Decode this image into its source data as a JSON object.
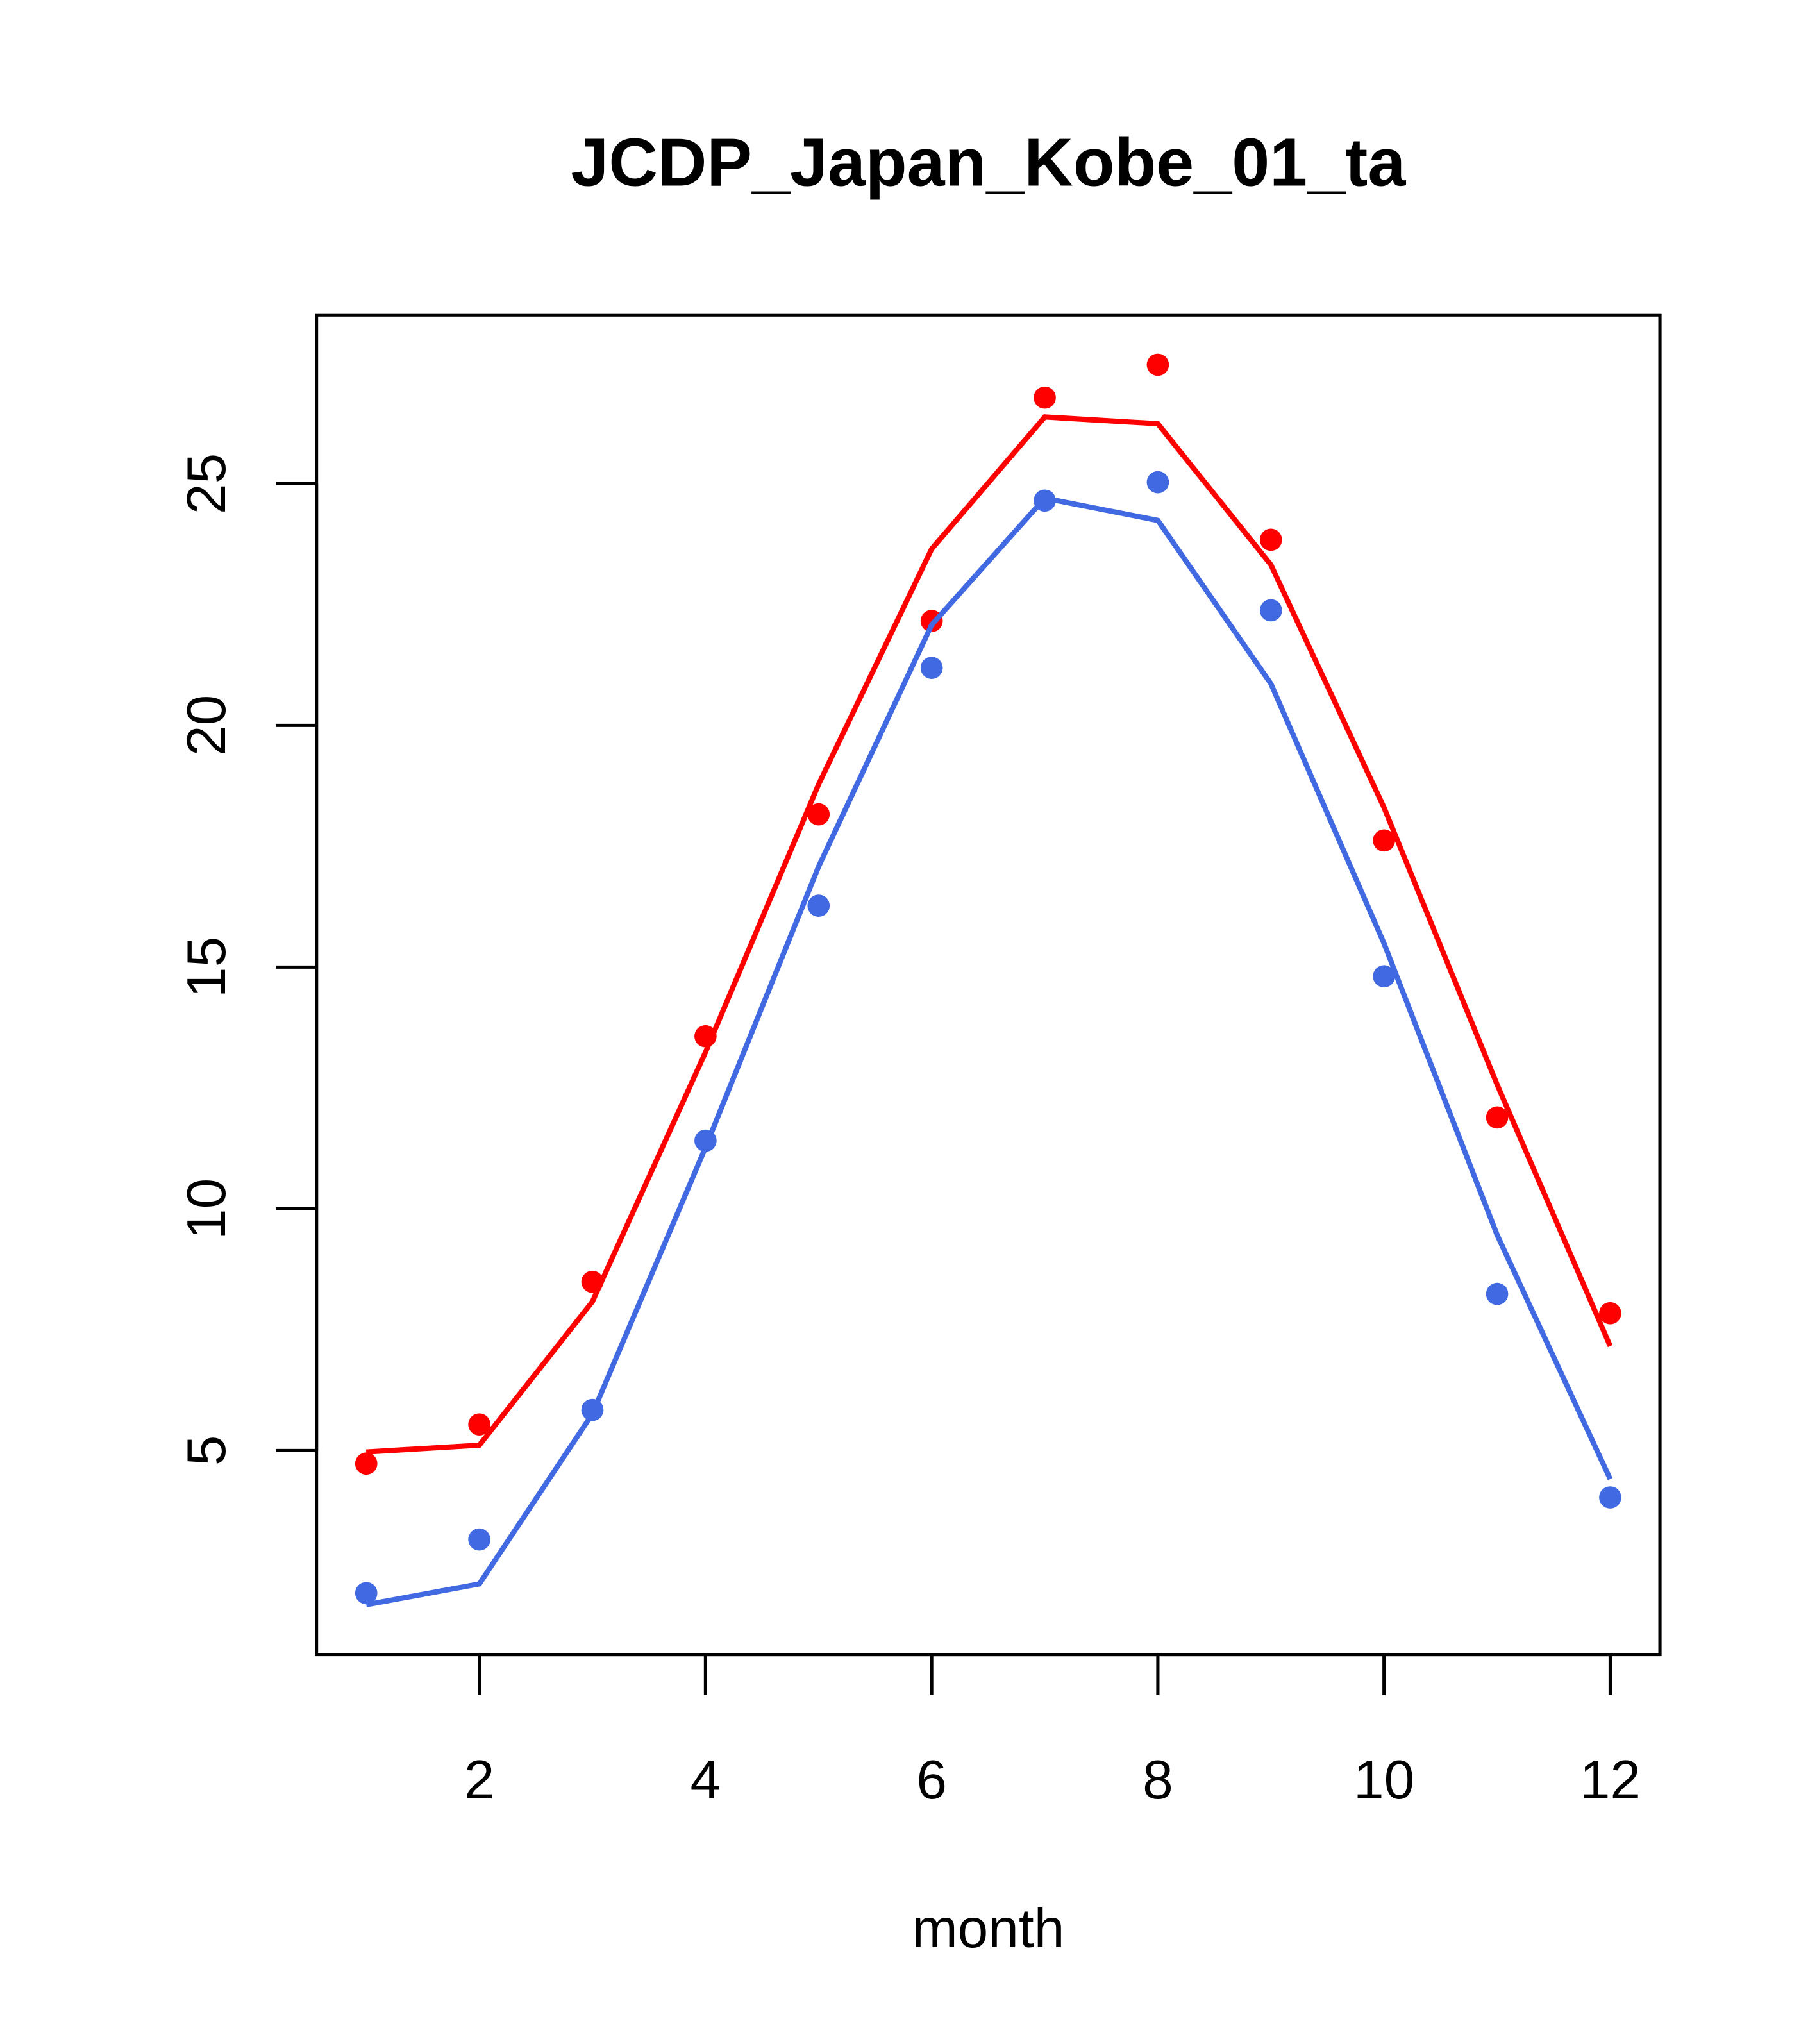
{
  "chart_data": {
    "type": "line",
    "title": "JCDP_Japan_Kobe_01_ta",
    "xlabel": "month",
    "ylabel": "",
    "xlim": [
      0.56,
      12.44
    ],
    "ylim": [
      0.78,
      28.49
    ],
    "xticks": [
      2,
      4,
      6,
      8,
      10,
      12
    ],
    "yticks": [
      5,
      10,
      15,
      20,
      25
    ],
    "x": [
      1,
      2,
      3,
      4,
      5,
      6,
      7,
      8,
      9,
      10,
      11,
      12
    ],
    "series": [
      {
        "name": "red points",
        "kind": "points",
        "color": "#FF0000",
        "values": [
          4.73,
          5.54,
          8.49,
          13.57,
          18.16,
          22.16,
          26.78,
          27.46,
          23.84,
          17.62,
          11.89,
          7.84
        ]
      },
      {
        "name": "red line",
        "kind": "line",
        "color": "#FF0000",
        "values": [
          4.97,
          5.11,
          8.08,
          13.24,
          18.78,
          23.65,
          26.38,
          26.24,
          23.32,
          18.3,
          12.57,
          7.16
        ]
      },
      {
        "name": "blue points",
        "kind": "points",
        "color": "#4169E1",
        "values": [
          2.05,
          3.16,
          5.84,
          11.41,
          16.27,
          21.19,
          24.65,
          25.03,
          22.38,
          14.81,
          8.24,
          4.03
        ]
      },
      {
        "name": "blue line",
        "kind": "line",
        "color": "#4169E1",
        "values": [
          1.81,
          2.24,
          5.76,
          11.27,
          17.08,
          22.08,
          24.7,
          24.24,
          20.86,
          15.49,
          9.46,
          4.41
        ]
      }
    ]
  }
}
